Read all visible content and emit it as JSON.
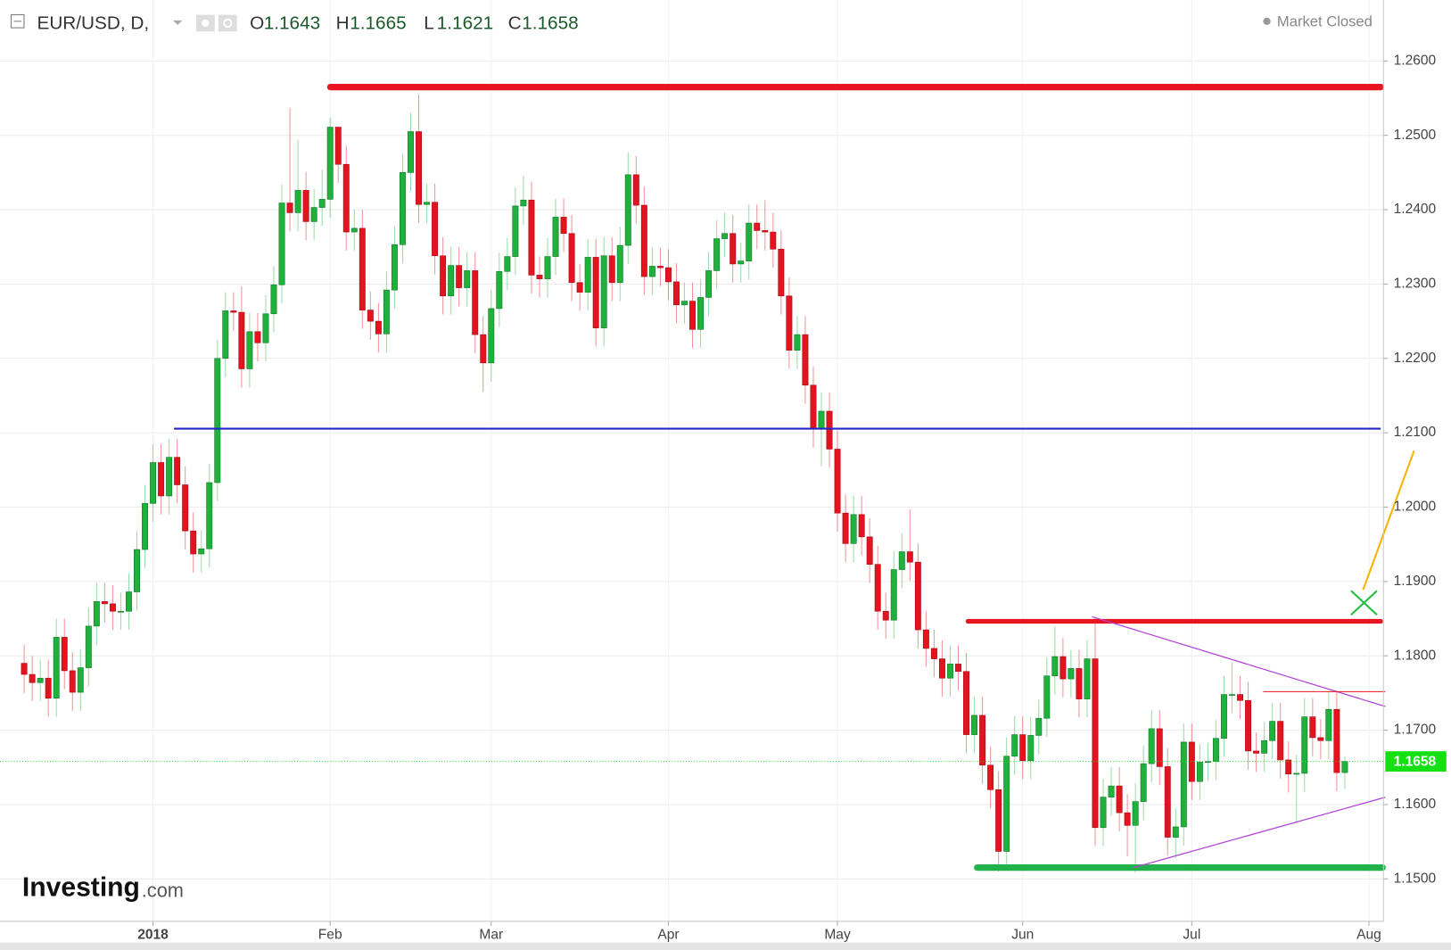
{
  "chart_data": {
    "type": "candlestick",
    "title": "EUR/USD, D,",
    "status": "Market Closed",
    "ohlc_labels": [
      "O",
      "H",
      "L",
      "C"
    ],
    "up_color": "#1fb13c",
    "down_color": "#e3141f",
    "open": [
      1.179,
      1.1775,
      1.1764,
      1.177,
      1.1743,
      1.1825,
      1.178,
      1.1751,
      1.1784,
      1.184,
      1.1873,
      1.187,
      1.186,
      1.186,
      1.1886,
      1.1943,
      1.2005,
      1.206,
      1.2015,
      1.2067,
      1.203,
      1.1968,
      1.1937,
      1.1944,
      1.2033,
      1.22,
      1.2264,
      1.2262,
      1.2186,
      1.2236,
      1.2221,
      1.226,
      1.2299,
      1.2409,
      1.2396,
      1.2426,
      1.2384,
      1.2403,
      1.2414,
      1.2511,
      1.2461,
      1.237,
      1.2375,
      1.2265,
      1.225,
      1.2233,
      1.2292,
      1.2353,
      1.245,
      1.2505,
      1.2407,
      1.241,
      1.2338,
      1.2284,
      1.2325,
      1.2295,
      1.2318,
      1.2232,
      1.2194,
      1.2267,
      1.2317,
      1.2337,
      1.2405,
      1.2413,
      1.2312,
      1.2307,
      1.2337,
      1.239,
      1.2368,
      1.2302,
      1.2289,
      1.2336,
      1.2241,
      1.2338,
      1.2302,
      1.2352,
      1.2447,
      1.2406,
      1.231,
      1.2324,
      1.2322,
      1.2303,
      1.2272,
      1.2277,
      1.2239,
      1.2282,
      1.2318,
      1.2361,
      1.2368,
      1.2327,
      1.2331,
      1.2382,
      1.2372,
      1.237,
      1.2347,
      1.2284,
      1.2211,
      1.2232,
      1.2164,
      1.2105,
      1.2129,
      1.2078,
      1.1992,
      1.1951,
      1.199,
      1.196,
      1.1923,
      1.186,
      1.1848,
      1.1916,
      1.194,
      1.1926,
      1.1835,
      1.181,
      1.1796,
      1.177,
      1.1789,
      1.1779,
      1.1694,
      1.172,
      1.1653,
      1.162,
      1.1537,
      1.1665,
      1.1694,
      1.1659,
      1.1693,
      1.1716,
      1.1773,
      1.1799,
      1.1769,
      1.1783,
      1.1742,
      1.1796,
      1.1569,
      1.161,
      1.1625,
      1.1589,
      1.1572,
      1.1604,
      1.1655,
      1.1702,
      1.1651,
      1.1556,
      1.157,
      1.1684,
      1.1631,
      1.1657,
      1.1658,
      1.1689,
      1.1748,
      1.1748,
      1.174,
      1.1672,
      1.1669,
      1.1686,
      1.1712,
      1.166,
      1.1641,
      1.1642,
      1.1718,
      1.169,
      1.1686,
      1.1728,
      1.1643
    ],
    "high": [
      1.1815,
      1.18,
      1.1795,
      1.1795,
      1.185,
      1.185,
      1.1805,
      1.1809,
      1.1865,
      1.1898,
      1.1898,
      1.1895,
      1.1885,
      1.1911,
      1.1968,
      1.203,
      1.2085,
      1.2085,
      1.2092,
      1.2092,
      1.2055,
      1.1993,
      1.1969,
      1.2058,
      1.2225,
      1.2289,
      1.2289,
      1.2297,
      1.2261,
      1.2261,
      1.2285,
      1.2324,
      1.2434,
      1.2537,
      1.2494,
      1.2451,
      1.2428,
      1.2454,
      1.2524,
      1.2507,
      1.2486,
      1.24,
      1.24,
      1.229,
      1.2275,
      1.2317,
      1.2378,
      1.2475,
      1.253,
      1.2555,
      1.2435,
      1.2435,
      1.2363,
      1.235,
      1.235,
      1.2343,
      1.2343,
      1.2257,
      1.2292,
      1.2342,
      1.2362,
      1.243,
      1.2446,
      1.2438,
      1.2337,
      1.2362,
      1.2415,
      1.2415,
      1.2393,
      1.2327,
      1.2361,
      1.2361,
      1.2363,
      1.2363,
      1.2377,
      1.2477,
      1.2472,
      1.2431,
      1.2349,
      1.2349,
      1.2347,
      1.2328,
      1.2302,
      1.2302,
      1.2307,
      1.2343,
      1.2386,
      1.2396,
      1.2393,
      1.2356,
      1.2407,
      1.2407,
      1.2413,
      1.2396,
      1.2372,
      1.2309,
      1.2257,
      1.2257,
      1.2189,
      1.2154,
      1.2154,
      1.2103,
      1.2017,
      1.2015,
      1.2015,
      1.1985,
      1.1948,
      1.1885,
      1.1941,
      1.1965,
      1.1997,
      1.1951,
      1.186,
      1.1835,
      1.1821,
      1.1814,
      1.1814,
      1.1804,
      1.1745,
      1.1745,
      1.1678,
      1.1645,
      1.169,
      1.1719,
      1.1719,
      1.1718,
      1.1741,
      1.1798,
      1.184,
      1.1824,
      1.1808,
      1.1808,
      1.1821,
      1.1852,
      1.1635,
      1.165,
      1.165,
      1.1614,
      1.1629,
      1.168,
      1.1727,
      1.1727,
      1.1676,
      1.1595,
      1.1709,
      1.1709,
      1.1682,
      1.1683,
      1.1714,
      1.1773,
      1.1791,
      1.1773,
      1.1765,
      1.1697,
      1.1711,
      1.1737,
      1.1737,
      1.1685,
      1.1667,
      1.1743,
      1.1743,
      1.1715,
      1.1753,
      1.1753,
      1.1665
    ],
    "low": [
      1.175,
      1.1739,
      1.1739,
      1.1718,
      1.1718,
      1.1755,
      1.1726,
      1.1726,
      1.1759,
      1.1815,
      1.1845,
      1.1835,
      1.1835,
      1.1835,
      1.1861,
      1.1918,
      1.198,
      1.199,
      1.199,
      1.2005,
      1.1943,
      1.1912,
      1.1912,
      1.1919,
      1.2008,
      1.2175,
      1.2237,
      1.2161,
      1.2161,
      1.2196,
      1.2196,
      1.2235,
      1.2274,
      1.2371,
      1.2371,
      1.2359,
      1.2359,
      1.2378,
      1.2389,
      1.2436,
      1.2345,
      1.2345,
      1.224,
      1.2225,
      1.2208,
      1.2208,
      1.2267,
      1.2328,
      1.2425,
      1.2382,
      1.2382,
      1.2313,
      1.2259,
      1.2259,
      1.227,
      1.227,
      1.2207,
      1.2155,
      1.2169,
      1.2242,
      1.2292,
      1.2312,
      1.238,
      1.2287,
      1.2282,
      1.2282,
      1.2312,
      1.2343,
      1.2277,
      1.2264,
      1.2264,
      1.2216,
      1.2216,
      1.2277,
      1.2277,
      1.2327,
      1.2381,
      1.2285,
      1.2285,
      1.2297,
      1.2278,
      1.2247,
      1.2247,
      1.2214,
      1.2214,
      1.2257,
      1.2293,
      1.2336,
      1.2302,
      1.2302,
      1.2306,
      1.2347,
      1.2345,
      1.2322,
      1.2259,
      1.2186,
      1.2186,
      1.2139,
      1.208,
      1.2055,
      1.2053,
      1.1967,
      1.1926,
      1.1926,
      1.1935,
      1.1898,
      1.1835,
      1.1823,
      1.1823,
      1.1891,
      1.1901,
      1.181,
      1.1785,
      1.1771,
      1.1745,
      1.1745,
      1.1754,
      1.1669,
      1.1669,
      1.1628,
      1.1595,
      1.151,
      1.1512,
      1.164,
      1.1634,
      1.1634,
      1.1668,
      1.1691,
      1.1748,
      1.1744,
      1.1744,
      1.1717,
      1.1717,
      1.1544,
      1.1544,
      1.1585,
      1.1564,
      1.153,
      1.1508,
      1.1579,
      1.163,
      1.1626,
      1.1531,
      1.1528,
      1.1545,
      1.1606,
      1.1606,
      1.1632,
      1.1633,
      1.1664,
      1.1723,
      1.1715,
      1.1647,
      1.1644,
      1.1644,
      1.1661,
      1.1635,
      1.1616,
      1.1575,
      1.1617,
      1.1665,
      1.1661,
      1.1661,
      1.1618,
      1.1621
    ],
    "close": [
      1.1775,
      1.1764,
      1.177,
      1.1743,
      1.1825,
      1.178,
      1.1751,
      1.1784,
      1.184,
      1.1873,
      1.187,
      1.186,
      1.186,
      1.1886,
      1.1943,
      1.2005,
      1.206,
      1.2015,
      1.2067,
      1.203,
      1.1968,
      1.1937,
      1.1944,
      1.2033,
      1.22,
      1.2264,
      1.2262,
      1.2186,
      1.2236,
      1.2221,
      1.226,
      1.2299,
      1.2409,
      1.2396,
      1.2426,
      1.2384,
      1.2403,
      1.2414,
      1.2511,
      1.2461,
      1.237,
      1.2375,
      1.2265,
      1.225,
      1.2233,
      1.2292,
      1.2353,
      1.245,
      1.2505,
      1.2407,
      1.241,
      1.2338,
      1.2284,
      1.2325,
      1.2295,
      1.2318,
      1.2232,
      1.2194,
      1.2267,
      1.2317,
      1.2337,
      1.2405,
      1.2413,
      1.2312,
      1.2307,
      1.2337,
      1.239,
      1.2368,
      1.2302,
      1.2289,
      1.2336,
      1.2241,
      1.2338,
      1.2302,
      1.2352,
      1.2447,
      1.2406,
      1.231,
      1.2324,
      1.2322,
      1.2303,
      1.2272,
      1.2277,
      1.2239,
      1.2282,
      1.2318,
      1.2361,
      1.2368,
      1.2327,
      1.2331,
      1.2382,
      1.2372,
      1.237,
      1.2347,
      1.2284,
      1.2211,
      1.2232,
      1.2164,
      1.2105,
      1.2129,
      1.2078,
      1.1992,
      1.1951,
      1.199,
      1.196,
      1.1923,
      1.186,
      1.1848,
      1.1916,
      1.194,
      1.1926,
      1.1835,
      1.181,
      1.1796,
      1.177,
      1.1789,
      1.1779,
      1.1694,
      1.172,
      1.1653,
      1.162,
      1.1537,
      1.1665,
      1.1694,
      1.1659,
      1.1693,
      1.1716,
      1.1773,
      1.1799,
      1.1769,
      1.1783,
      1.1742,
      1.1796,
      1.1569,
      1.161,
      1.1625,
      1.1589,
      1.1572,
      1.1604,
      1.1655,
      1.1702,
      1.1651,
      1.1556,
      1.157,
      1.1684,
      1.1631,
      1.1657,
      1.1658,
      1.1689,
      1.1748,
      1.1748,
      1.174,
      1.1672,
      1.1669,
      1.1686,
      1.1712,
      1.166,
      1.1641,
      1.1642,
      1.1718,
      1.169,
      1.1686,
      1.1728,
      1.1643,
      1.1658
    ],
    "xlim": [
      -3,
      168.8
    ],
    "xticks": [
      {
        "value": 16,
        "label": "2018"
      },
      {
        "value": 38,
        "label": "Feb"
      },
      {
        "value": 58,
        "label": "Mar"
      },
      {
        "value": 80,
        "label": "Apr"
      },
      {
        "value": 101,
        "label": "May"
      },
      {
        "value": 124,
        "label": "Jun"
      },
      {
        "value": 145,
        "label": "Jul"
      },
      {
        "value": 167,
        "label": "Aug"
      }
    ],
    "ylim": [
      1.1443,
      1.2682
    ],
    "yticks": [
      {
        "value": 1.15,
        "label": "1.1500"
      },
      {
        "value": 1.16,
        "label": "1.1600"
      },
      {
        "value": 1.17,
        "label": "1.1700"
      },
      {
        "value": 1.18,
        "label": "1.1800"
      },
      {
        "value": 1.19,
        "label": "1.1900"
      },
      {
        "value": 1.2,
        "label": "1.2000"
      },
      {
        "value": 1.21,
        "label": "1.2100"
      },
      {
        "value": 1.22,
        "label": "1.2200"
      },
      {
        "value": 1.23,
        "label": "1.2300"
      },
      {
        "value": 1.24,
        "label": "1.2400"
      },
      {
        "value": 1.25,
        "label": "1.2500"
      },
      {
        "value": 1.26,
        "label": "1.2600"
      }
    ],
    "grid": true
  },
  "logo": {
    "brand": "Investing",
    "suffix": ".com"
  }
}
